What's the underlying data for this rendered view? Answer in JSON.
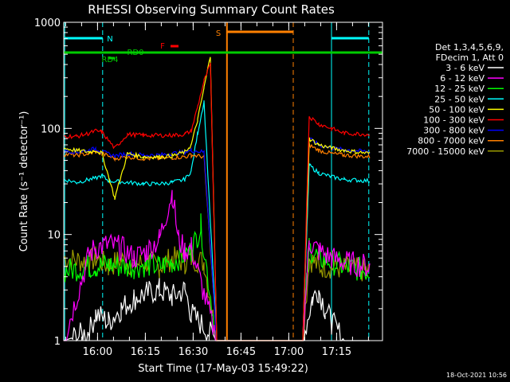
{
  "chart_data": {
    "type": "line",
    "title": "RHESSI Observing Summary Count Rates",
    "xlabel": "Start Time (17-May-03 15:49:22)",
    "ylabel": "Count Rate (s⁻¹ detector⁻¹)",
    "yscale": "log",
    "ylim": [
      1,
      1000
    ],
    "xlim_minutes": [
      0,
      100
    ],
    "x_ticks": [
      {
        "label": "16:00",
        "t": 10.6
      },
      {
        "label": "16:15",
        "t": 25.6
      },
      {
        "label": "16:30",
        "t": 40.6
      },
      {
        "label": "16:45",
        "t": 55.6
      },
      {
        "label": "17:00",
        "t": 70.6
      },
      {
        "label": "17:15",
        "t": 85.6
      }
    ],
    "y_ticks": [
      {
        "label": "1",
        "v": 1
      },
      {
        "label": "10",
        "v": 10
      },
      {
        "label": "100",
        "v": 100
      },
      {
        "label": "1000",
        "v": 1000
      }
    ],
    "legend": {
      "header": [
        "Det 1,3,4,5,6,9,",
        "FDecim 1, Att 0"
      ],
      "placement": "right"
    },
    "series": [
      {
        "name": "3 - 6 keV",
        "color": "#ffffff",
        "points": [
          [
            0,
            1
          ],
          [
            8,
            1.2
          ],
          [
            10,
            1.8
          ],
          [
            14,
            1.5
          ],
          [
            18,
            2
          ],
          [
            22,
            2.5
          ],
          [
            26,
            2.8
          ],
          [
            30,
            3
          ],
          [
            34,
            2.6
          ],
          [
            38,
            3
          ],
          [
            40,
            1.8
          ],
          [
            48,
            1
          ],
          [
            75,
            1
          ],
          [
            78,
            2.5
          ],
          [
            80,
            3
          ],
          [
            82,
            2
          ],
          [
            84,
            1.5
          ],
          [
            88,
            1
          ],
          [
            96,
            1
          ]
        ]
      },
      {
        "name": "6 - 12 keV",
        "color": "#ff00ff",
        "points": [
          [
            0,
            1
          ],
          [
            8,
            6.5
          ],
          [
            10,
            7.5
          ],
          [
            14,
            8
          ],
          [
            18,
            7.5
          ],
          [
            22,
            6
          ],
          [
            26,
            7
          ],
          [
            30,
            9
          ],
          [
            34,
            25
          ],
          [
            36,
            9
          ],
          [
            38,
            7
          ],
          [
            40,
            7.5
          ],
          [
            48,
            1
          ],
          [
            75,
            1
          ],
          [
            77,
            8.5
          ],
          [
            80,
            7
          ],
          [
            84,
            6
          ],
          [
            88,
            5.5
          ],
          [
            96,
            5
          ]
        ]
      },
      {
        "name": "12 - 25 keV",
        "color": "#00ff00",
        "points": [
          [
            0,
            4.5
          ],
          [
            8,
            5
          ],
          [
            10,
            5
          ],
          [
            14,
            5.2
          ],
          [
            18,
            5
          ],
          [
            22,
            5
          ],
          [
            26,
            5.2
          ],
          [
            30,
            5
          ],
          [
            34,
            5.5
          ],
          [
            38,
            6.5
          ],
          [
            40,
            7
          ],
          [
            43,
            12
          ],
          [
            48,
            1
          ],
          [
            75,
            1
          ],
          [
            77,
            7.5
          ],
          [
            80,
            6
          ],
          [
            84,
            5.5
          ],
          [
            88,
            5
          ],
          [
            96,
            4.5
          ]
        ]
      },
      {
        "name": "25 - 50 keV",
        "color": "#00ffff",
        "points": [
          [
            0,
            33
          ],
          [
            4,
            31
          ],
          [
            8,
            33
          ],
          [
            10,
            34
          ],
          [
            12,
            36
          ],
          [
            14,
            32
          ],
          [
            20,
            31
          ],
          [
            25,
            30
          ],
          [
            30,
            30
          ],
          [
            34,
            31
          ],
          [
            38,
            33
          ],
          [
            40,
            40
          ],
          [
            42,
            90
          ],
          [
            44,
            180
          ],
          [
            48,
            1
          ],
          [
            75,
            1
          ],
          [
            77,
            45
          ],
          [
            80,
            38
          ],
          [
            84,
            35
          ],
          [
            88,
            33
          ],
          [
            96,
            32
          ]
        ]
      },
      {
        "name": "50 - 100 keV",
        "color": "#ffff00",
        "points": [
          [
            0,
            65
          ],
          [
            4,
            62
          ],
          [
            8,
            60
          ],
          [
            10,
            62
          ],
          [
            12,
            58
          ],
          [
            16,
            22
          ],
          [
            20,
            58
          ],
          [
            25,
            54
          ],
          [
            30,
            54
          ],
          [
            34,
            55
          ],
          [
            38,
            60
          ],
          [
            40,
            70
          ],
          [
            42,
            120
          ],
          [
            44,
            240
          ],
          [
            46,
            480
          ],
          [
            48,
            1
          ],
          [
            75,
            1
          ],
          [
            77,
            80
          ],
          [
            80,
            70
          ],
          [
            84,
            65
          ],
          [
            88,
            62
          ],
          [
            96,
            58
          ]
        ]
      },
      {
        "name": "100 - 300 keV",
        "color": "#ff0000",
        "points": [
          [
            0,
            85
          ],
          [
            4,
            84
          ],
          [
            8,
            90
          ],
          [
            10,
            95
          ],
          [
            12,
            92
          ],
          [
            16,
            65
          ],
          [
            20,
            88
          ],
          [
            25,
            86
          ],
          [
            30,
            86
          ],
          [
            34,
            86
          ],
          [
            38,
            88
          ],
          [
            40,
            95
          ],
          [
            42,
            160
          ],
          [
            44,
            280
          ],
          [
            46,
            400
          ],
          [
            48,
            1
          ],
          [
            75,
            1
          ],
          [
            77,
            130
          ],
          [
            80,
            110
          ],
          [
            84,
            100
          ],
          [
            88,
            90
          ],
          [
            96,
            88
          ]
        ]
      },
      {
        "name": "300 - 800 keV",
        "color": "#0000ff",
        "points": [
          [
            0,
            62
          ],
          [
            4,
            60
          ],
          [
            8,
            62
          ],
          [
            10,
            65
          ],
          [
            12,
            60
          ],
          [
            16,
            55
          ],
          [
            20,
            58
          ],
          [
            25,
            56
          ],
          [
            30,
            56
          ],
          [
            34,
            58
          ],
          [
            38,
            60
          ],
          [
            40,
            62
          ],
          [
            44,
            60
          ],
          [
            48,
            1
          ],
          [
            75,
            1
          ],
          [
            77,
            80
          ],
          [
            80,
            70
          ],
          [
            84,
            65
          ],
          [
            88,
            63
          ],
          [
            96,
            60
          ]
        ]
      },
      {
        "name": "800 - 7000 keV",
        "color": "#ff8000",
        "points": [
          [
            0,
            57
          ],
          [
            4,
            56
          ],
          [
            8,
            58
          ],
          [
            10,
            60
          ],
          [
            12,
            58
          ],
          [
            16,
            52
          ],
          [
            20,
            54
          ],
          [
            25,
            52
          ],
          [
            30,
            52
          ],
          [
            34,
            53
          ],
          [
            38,
            54
          ],
          [
            40,
            56
          ],
          [
            44,
            54
          ],
          [
            48,
            1
          ],
          [
            75,
            1
          ],
          [
            77,
            70
          ],
          [
            80,
            62
          ],
          [
            84,
            58
          ],
          [
            88,
            56
          ],
          [
            96,
            54
          ]
        ]
      },
      {
        "name": "7000 - 15000 keV",
        "color": "#999900",
        "points": [
          [
            0,
            6
          ],
          [
            8,
            5.5
          ],
          [
            10,
            6
          ],
          [
            14,
            5
          ],
          [
            18,
            5.8
          ],
          [
            22,
            5.2
          ],
          [
            26,
            5.5
          ],
          [
            30,
            5
          ],
          [
            34,
            6
          ],
          [
            38,
            5.5
          ],
          [
            40,
            6
          ],
          [
            44,
            5.5
          ],
          [
            48,
            1
          ],
          [
            75,
            1
          ],
          [
            77,
            6
          ],
          [
            80,
            5
          ],
          [
            84,
            5
          ],
          [
            88,
            4.8
          ],
          [
            96,
            4.5
          ]
        ]
      }
    ],
    "annotations": [
      {
        "label": "N",
        "color": "#00ffff"
      },
      {
        "label": "F",
        "color": "#ff0000"
      },
      {
        "label": "RD0",
        "color": "#00cc00"
      },
      {
        "label": "RD4",
        "color": "#00cc00"
      },
      {
        "label": "S",
        "color": "#ff8000"
      }
    ],
    "flag_colors": {
      "night": "#00ffff",
      "flare": "#ff0000",
      "decim": "#00cc00",
      "saa": "#ff8000"
    }
  },
  "footer": {
    "timestamp": "18-Oct-2021 10:56"
  }
}
